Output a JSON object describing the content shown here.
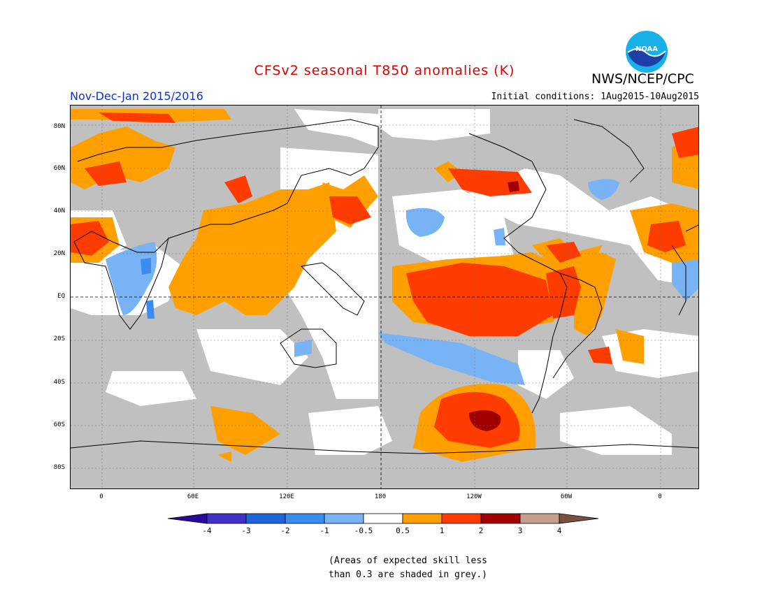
{
  "title": "CFSv2 seasonal T850 anomalies (K)",
  "agency": "NWS/NCEP/CPC",
  "logo_text": "NOAA",
  "period": "Nov-Dec-Jan 2015/2016",
  "initial_conditions": "Initial conditions: 1Aug2015-10Aug2015",
  "lat_labels": [
    "80N",
    "60N",
    "40N",
    "20N",
    "EQ",
    "20S",
    "40S",
    "60S",
    "80S"
  ],
  "lon_labels": [
    "0",
    "60E",
    "120E",
    "180",
    "120W",
    "60W",
    "0"
  ],
  "colorbar": {
    "labels": [
      "-4",
      "-3",
      "-2",
      "-1",
      "-0.5",
      "0.5",
      "1",
      "2",
      "3",
      "4"
    ],
    "colors": [
      "#2a0a9e",
      "#4030c8",
      "#1e64dc",
      "#3c8cf0",
      "#78b4f5",
      "#ffffff",
      "#ff9f00",
      "#ff3c00",
      "#a00000",
      "#c4a08a",
      "#7a5040"
    ]
  },
  "note_lines": [
    "(Areas of expected skill less",
    "than 0.3 are shaded in grey.)"
  ]
}
